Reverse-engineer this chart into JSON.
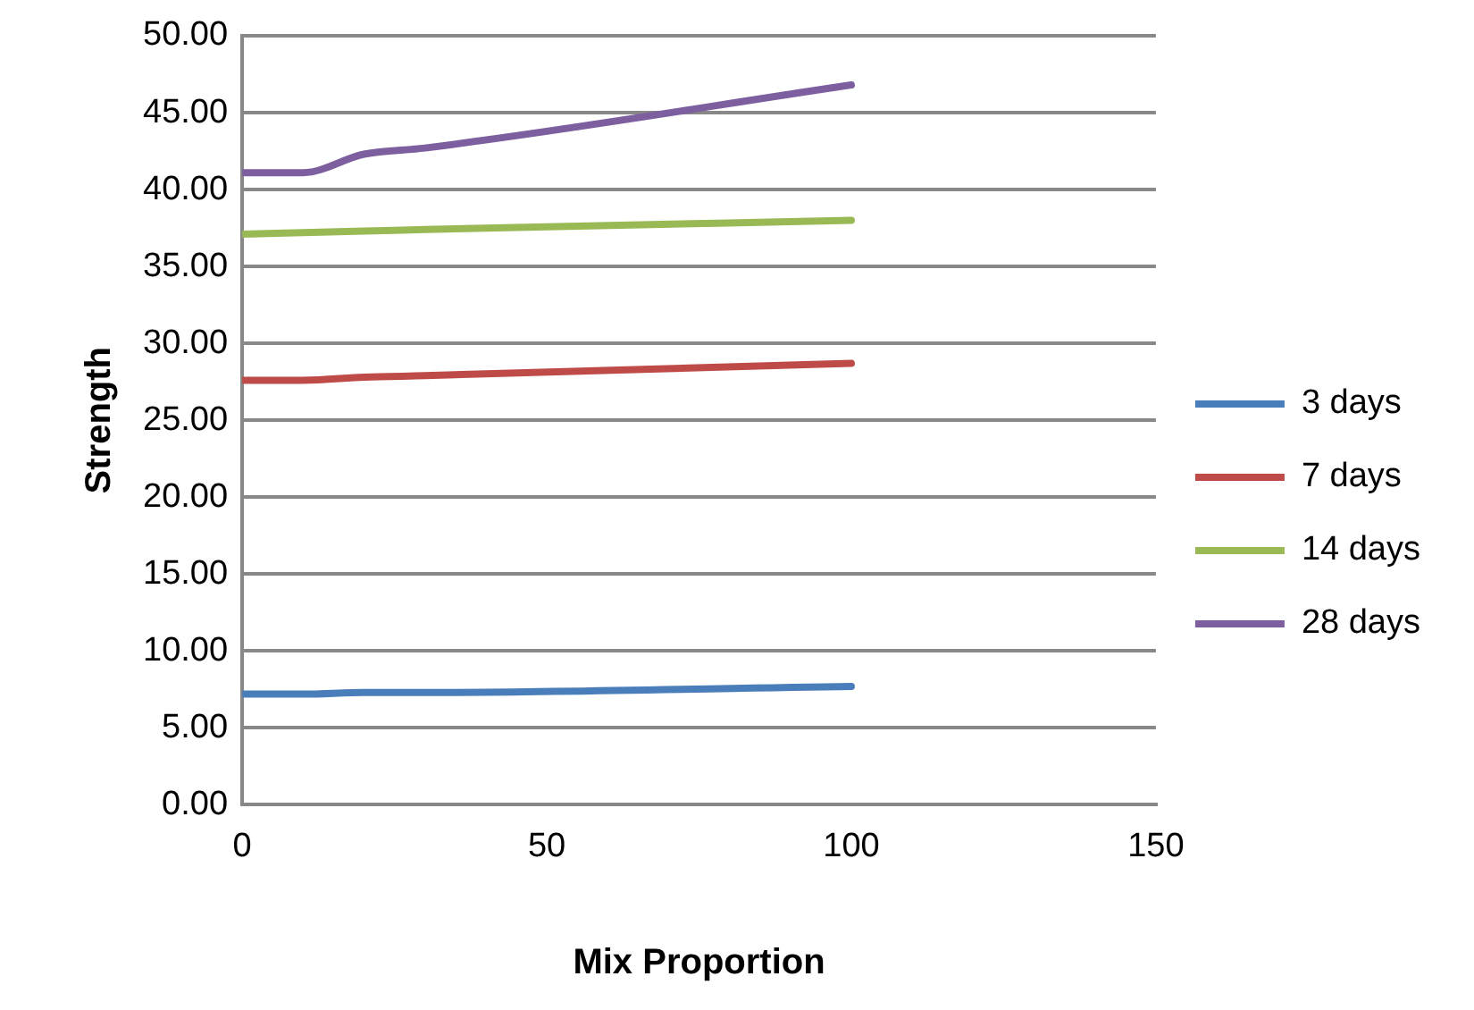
{
  "chart_data": {
    "type": "line",
    "xlabel": "Mix Proportion",
    "ylabel": "Strength",
    "x": [
      0,
      10,
      20,
      30,
      100
    ],
    "series": [
      {
        "name": "3 days",
        "color": "#4a7ebb",
        "values": [
          7.2,
          7.2,
          7.3,
          7.3,
          7.7
        ]
      },
      {
        "name": "7 days",
        "color": "#be4b48",
        "values": [
          27.6,
          27.6,
          27.8,
          27.9,
          28.7
        ]
      },
      {
        "name": "14 days",
        "color": "#98b954",
        "values": [
          37.1,
          37.2,
          37.3,
          37.4,
          38.0
        ]
      },
      {
        "name": "28 days",
        "color": "#7d5fa0",
        "values": [
          41.1,
          41.1,
          42.3,
          42.7,
          46.8
        ]
      }
    ],
    "xlim": [
      0,
      150
    ],
    "xticks": [
      0,
      50,
      100,
      150
    ],
    "ylim": [
      0,
      50
    ],
    "yticks": [
      {
        "value": 0,
        "label": "0.00"
      },
      {
        "value": 5,
        "label": "5.00"
      },
      {
        "value": 10,
        "label": "10.00"
      },
      {
        "value": 15,
        "label": "15.00"
      },
      {
        "value": 20,
        "label": "20.00"
      },
      {
        "value": 25,
        "label": "25.00"
      },
      {
        "value": 30,
        "label": "30.00"
      },
      {
        "value": 35,
        "label": "35.00"
      },
      {
        "value": 40,
        "label": "40.00"
      },
      {
        "value": 45,
        "label": "45.00"
      },
      {
        "value": 50,
        "label": "50.00"
      }
    ],
    "grid": "y",
    "legend": "right",
    "marker": "none",
    "line_style": "solid"
  }
}
